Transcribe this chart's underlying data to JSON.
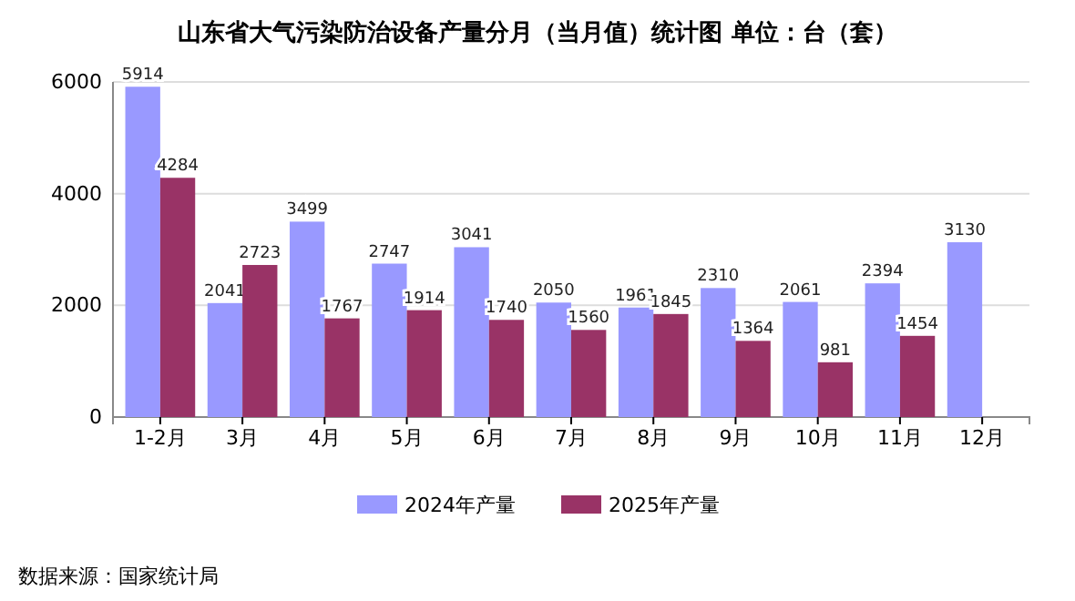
{
  "chart_data": {
    "type": "bar",
    "title": "山东省大气污染防治设备产量分月（当月值）统计图 单位：台（套）",
    "categories": [
      "1-2月",
      "3月",
      "4月",
      "5月",
      "6月",
      "7月",
      "8月",
      "9月",
      "10月",
      "11月",
      "12月"
    ],
    "series": [
      {
        "name": "2024年产量",
        "color": "#9999ff",
        "values": [
          5914,
          2041,
          3499,
          2747,
          3041,
          2050,
          1961,
          2310,
          2061,
          2394,
          3130
        ]
      },
      {
        "name": "2025年产量",
        "color": "#993366",
        "values": [
          4284,
          2723,
          1767,
          1914,
          1740,
          1560,
          1845,
          1364,
          981,
          1454,
          null
        ]
      }
    ],
    "ylim": [
      0,
      6000
    ],
    "yticks": [
      0,
      2000,
      4000,
      6000
    ],
    "grid": "y",
    "legend": "bottom",
    "data_labels": true,
    "annotations": [
      "数据来源：国家统计局"
    ]
  }
}
